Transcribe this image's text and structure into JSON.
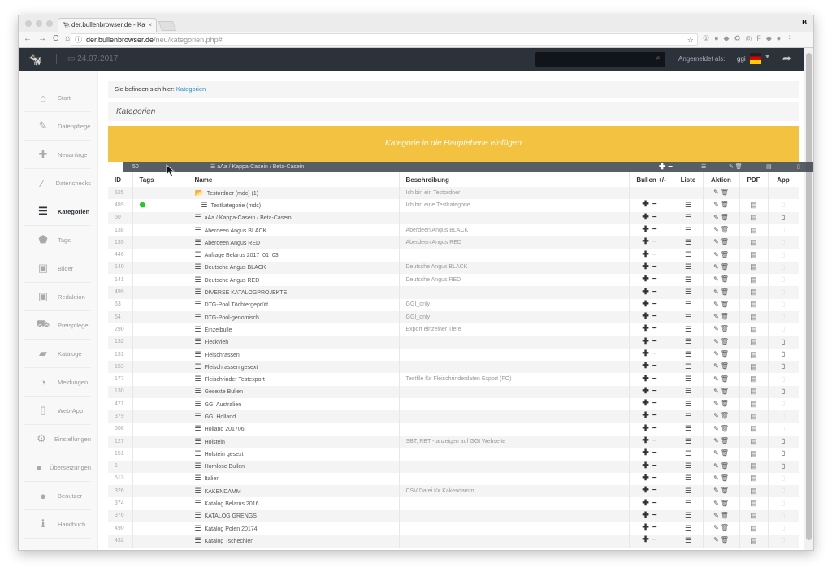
{
  "browser": {
    "tab_title": "der.bullenbrowser.de - Kategorien",
    "url_domain": "der.bullenbrowser.de",
    "url_path": "/neu/kategorien.php#",
    "profile": "B"
  },
  "header": {
    "date": "24.07.2017",
    "logged_in_label": "Angemeldet als:",
    "user": "ggi"
  },
  "sidebar": {
    "items": [
      {
        "label": "Start",
        "icon": "home-icon",
        "g": "⌂"
      },
      {
        "label": "Datenpflege",
        "icon": "edit-icon",
        "g": "✎"
      },
      {
        "label": "Neuanlage",
        "icon": "plus-icon",
        "g": "✚"
      },
      {
        "label": "Datenchecks",
        "icon": "magic-wand-icon",
        "g": "⁄"
      },
      {
        "label": "Kategorien",
        "icon": "list-icon",
        "g": "☰",
        "active": true
      },
      {
        "label": "Tags",
        "icon": "tag-icon",
        "g": "⬟"
      },
      {
        "label": "Bilder",
        "icon": "image-icon",
        "g": "▣"
      },
      {
        "label": "Redaktion",
        "icon": "image-icon",
        "g": "▣"
      },
      {
        "label": "Preispflege",
        "icon": "cart-icon",
        "g": "⛟"
      },
      {
        "label": "Kataloge",
        "icon": "book-icon",
        "g": "▰"
      },
      {
        "label": "Meldungen",
        "icon": "rss-icon",
        "g": "◔"
      },
      {
        "label": "Web-App",
        "icon": "mobile-icon",
        "g": "▯"
      },
      {
        "label": "Einstellungen",
        "icon": "gears-icon",
        "g": "⚙"
      },
      {
        "label": "Übersetzungen",
        "icon": "globe-icon",
        "g": "●"
      },
      {
        "label": "Benutzer",
        "icon": "user-icon",
        "g": "●"
      },
      {
        "label": "Handbuch",
        "icon": "info-icon",
        "g": "ℹ"
      }
    ]
  },
  "breadcrumb": {
    "prefix": "Sie befinden sich hier:",
    "current": "Kategorien"
  },
  "page_title": "Kategorien",
  "banner": "Kategorie in die Hauptebene einfügen",
  "drag_ghost": {
    "id": "50",
    "name": "aAa / Kappa-Casein / Beta-Casein"
  },
  "table": {
    "columns": [
      "ID",
      "Tags",
      "Name",
      "Beschreibung",
      "Bullen +/-",
      "Liste",
      "Aktion",
      "PDF",
      "App"
    ],
    "rows": [
      {
        "id": "525",
        "name": "Testordner (mdc) (1)",
        "desc": "Ich bin ein Testordner",
        "folder": true
      },
      {
        "id": "489",
        "name": "Testkategorie (mdc)",
        "desc": "Ich bin eine Testkategorie",
        "tag": true,
        "indent": true,
        "app": false
      },
      {
        "id": "50",
        "name": "aAa / Kappa-Casein / Beta-Casein",
        "desc": "",
        "app": true
      },
      {
        "id": "138",
        "name": "Aberdeen Angus BLACK",
        "desc": "Aberdeen Angus BLACK",
        "app": false
      },
      {
        "id": "139",
        "name": "Aberdeen Angus RED",
        "desc": "Aberdeen Angus RED",
        "app": false
      },
      {
        "id": "446",
        "name": "Anfrage Belarus 2017_01_03",
        "desc": "",
        "app": false
      },
      {
        "id": "140",
        "name": "Deutsche Angus BLACK",
        "desc": "Deutsche Angus BLACK",
        "app": false
      },
      {
        "id": "141",
        "name": "Deutsche Angus RED",
        "desc": "Deutsche Angus RED",
        "app": false
      },
      {
        "id": "499",
        "name": "DIVERSE KATALOGPROJEKTE",
        "desc": "",
        "app": false
      },
      {
        "id": "63",
        "name": "DTG-Pool Töchtergeprüft",
        "desc": "GGI_only",
        "app": false
      },
      {
        "id": "64",
        "name": "DTG-Pool-genomisch",
        "desc": "GGI_only",
        "app": false
      },
      {
        "id": "290",
        "name": "Einzelbulle",
        "desc": "Export einzelner Tiere",
        "app": false
      },
      {
        "id": "132",
        "name": "Fleckvieh",
        "desc": "",
        "app": true
      },
      {
        "id": "131",
        "name": "Fleischrassen",
        "desc": "",
        "app": true
      },
      {
        "id": "153",
        "name": "Fleischrassen gesext",
        "desc": "",
        "app": true
      },
      {
        "id": "177",
        "name": "Fleischrinder Testexport",
        "desc": "Testfile für Fleischrinderdaten Export (FO)",
        "app": false
      },
      {
        "id": "130",
        "name": "Gesexte Bullen",
        "desc": "",
        "app": true
      },
      {
        "id": "471",
        "name": "GGI Australien",
        "desc": "",
        "app": false
      },
      {
        "id": "379",
        "name": "GGI Holland",
        "desc": "",
        "app": false
      },
      {
        "id": "508",
        "name": "Holland 201706",
        "desc": "",
        "app": false
      },
      {
        "id": "127",
        "name": "Holstein",
        "desc": "SBT, RBT - anzeigen auf GGI Webseite",
        "app": true
      },
      {
        "id": "151",
        "name": "Holstein gesext",
        "desc": "",
        "app": true
      },
      {
        "id": "1",
        "name": "Hornlose Bullen",
        "desc": "",
        "app": true
      },
      {
        "id": "513",
        "name": "Italien",
        "desc": "",
        "app": false
      },
      {
        "id": "326",
        "name": "KAKENDAMM",
        "desc": "CSV Datei für Kakendamm",
        "app": false
      },
      {
        "id": "374",
        "name": "Katalog Belarus 2016",
        "desc": "",
        "app": false
      },
      {
        "id": "376",
        "name": "KATALOG GRENGS",
        "desc": "",
        "app": false
      },
      {
        "id": "490",
        "name": "Katalog Polen 20174",
        "desc": "",
        "app": false
      },
      {
        "id": "432",
        "name": "Katalog Tschechien",
        "desc": "",
        "app": false
      }
    ]
  },
  "colors": {
    "header": "#2b323a",
    "banner": "#f2c240",
    "link": "#2a8ec9",
    "tag": "#22cc22"
  }
}
